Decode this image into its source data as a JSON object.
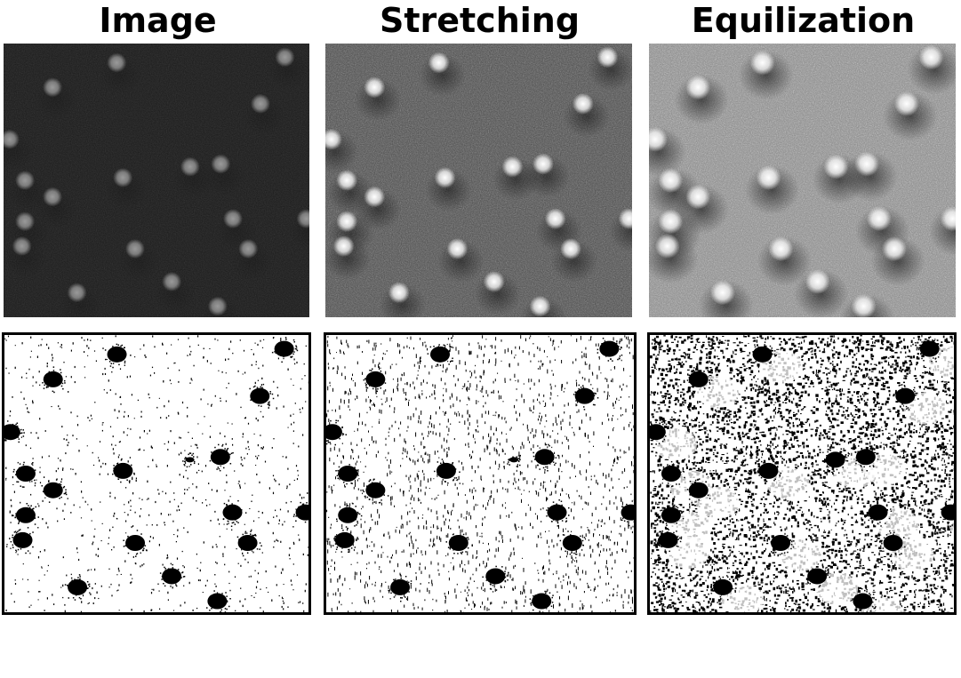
{
  "figure": {
    "titles": {
      "image": "Image",
      "stretching": "Stretching",
      "equalization": "Equilization"
    }
  }
}
